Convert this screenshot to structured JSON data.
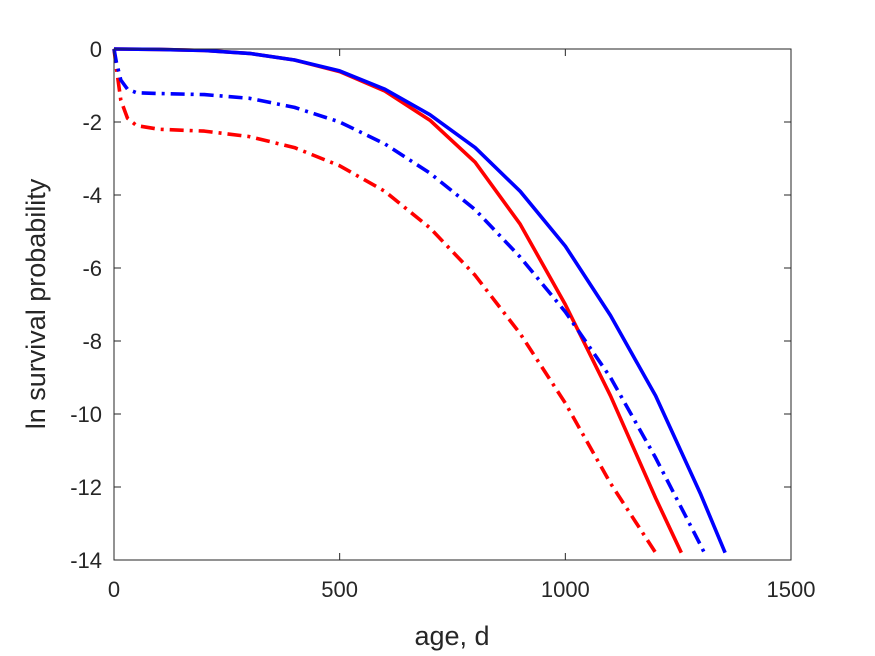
{
  "chart_data": {
    "type": "line",
    "title": "",
    "xlabel": "age, d",
    "ylabel": "ln survival probability",
    "xlim": [
      0,
      1500
    ],
    "ylim": [
      -14,
      0
    ],
    "xticks": [
      0,
      500,
      1000,
      1500
    ],
    "yticks": [
      0,
      -2,
      -4,
      -6,
      -8,
      -10,
      -12,
      -14
    ],
    "grid": false,
    "legend": "none",
    "series": [
      {
        "color": "#ff0000",
        "style": "solid",
        "x": [
          0,
          100,
          200,
          300,
          400,
          500,
          600,
          700,
          800,
          900,
          1000,
          1100,
          1200,
          1257
        ],
        "y": [
          0,
          -0.01,
          -0.04,
          -0.12,
          -0.3,
          -0.62,
          -1.15,
          -1.95,
          -3.1,
          -4.8,
          -7.0,
          -9.5,
          -12.3,
          -13.8
        ]
      },
      {
        "color": "#0000ff",
        "style": "solid",
        "x": [
          0,
          100,
          200,
          300,
          400,
          500,
          600,
          700,
          800,
          900,
          1000,
          1100,
          1200,
          1300,
          1354
        ],
        "y": [
          0,
          -0.01,
          -0.04,
          -0.12,
          -0.3,
          -0.6,
          -1.1,
          -1.8,
          -2.7,
          -3.9,
          -5.4,
          -7.3,
          -9.5,
          -12.2,
          -13.8
        ]
      },
      {
        "color": "#ff0000",
        "style": "dashdot",
        "x": [
          0,
          5,
          15,
          30,
          50,
          100,
          200,
          300,
          400,
          500,
          600,
          700,
          800,
          900,
          1000,
          1100,
          1200
        ],
        "y": [
          0,
          -0.5,
          -1.4,
          -1.9,
          -2.1,
          -2.2,
          -2.25,
          -2.4,
          -2.7,
          -3.2,
          -3.9,
          -4.9,
          -6.2,
          -7.8,
          -9.7,
          -11.9,
          -13.8
        ]
      },
      {
        "color": "#0000ff",
        "style": "dashdot",
        "x": [
          0,
          5,
          15,
          30,
          50,
          100,
          200,
          300,
          400,
          500,
          600,
          700,
          800,
          900,
          1000,
          1100,
          1200,
          1300,
          1308
        ],
        "y": [
          0,
          -0.35,
          -0.85,
          -1.1,
          -1.2,
          -1.22,
          -1.25,
          -1.35,
          -1.6,
          -2.0,
          -2.6,
          -3.4,
          -4.4,
          -5.7,
          -7.2,
          -9.0,
          -11.2,
          -13.6,
          -13.8
        ]
      }
    ]
  }
}
